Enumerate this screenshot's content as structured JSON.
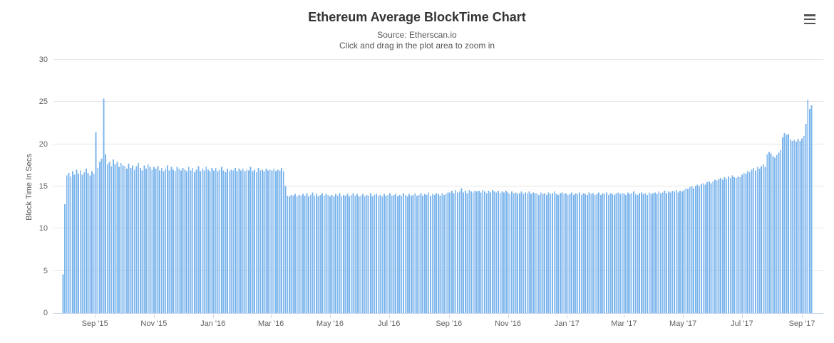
{
  "toolbar": {
    "menu_icon": "hamburger-menu-icon"
  },
  "chart_data": {
    "type": "bar",
    "title": "Ethereum Average BlockTime Chart",
    "subtitle": "Source: Etherscan.io",
    "zoom_hint": "Click and drag in the plot area to zoom in",
    "ylabel": "Block Time In Secs",
    "xlabel": "",
    "ylim": [
      0,
      30
    ],
    "yticks": [
      0,
      5,
      10,
      15,
      20,
      25,
      30
    ],
    "grid": true,
    "legend": false,
    "bar_color": "#7cb5ec",
    "axis_color": "#ccd6eb",
    "grid_color": "#e6e6e6",
    "xticks": [
      {
        "label": "Sep '15",
        "pos": 0.0438
      },
      {
        "label": "Nov '15",
        "pos": 0.1224
      },
      {
        "label": "Jan '16",
        "pos": 0.201
      },
      {
        "label": "Mar '16",
        "pos": 0.2784
      },
      {
        "label": "May '16",
        "pos": 0.357
      },
      {
        "label": "Jul '16",
        "pos": 0.4356
      },
      {
        "label": "Sep '16",
        "pos": 0.5155
      },
      {
        "label": "Nov '16",
        "pos": 0.5941
      },
      {
        "label": "Jan '17",
        "pos": 0.6727
      },
      {
        "label": "Mar '17",
        "pos": 0.7487
      },
      {
        "label": "May '17",
        "pos": 0.8273
      },
      {
        "label": "Jul '17",
        "pos": 0.9059
      },
      {
        "label": "Sep '17",
        "pos": 0.9858
      }
    ],
    "values": [
      4.6,
      12.9,
      16.3,
      16.6,
      16.2,
      16.8,
      16.4,
      17.0,
      16.5,
      16.9,
      16.4,
      16.7,
      17.1,
      16.6,
      16.3,
      16.8,
      16.5,
      21.4,
      17.2,
      17.9,
      18.3,
      25.4,
      18.8,
      17.6,
      17.9,
      17.4,
      18.2,
      17.6,
      17.9,
      17.3,
      17.8,
      17.5,
      17.4,
      17.1,
      17.7,
      17.2,
      17.5,
      17.0,
      17.4,
      17.8,
      17.2,
      16.9,
      17.5,
      17.1,
      17.6,
      17.3,
      17.0,
      17.3,
      17.1,
      17.4,
      16.9,
      17.2,
      16.8,
      17.1,
      17.5,
      16.9,
      17.3,
      17.0,
      16.8,
      17.3,
      17.1,
      16.9,
      17.2,
      17.0,
      16.8,
      17.3,
      16.9,
      17.2,
      16.7,
      17.0,
      17.4,
      16.8,
      17.1,
      16.9,
      17.3,
      17.0,
      16.8,
      17.2,
      16.9,
      17.2,
      16.8,
      17.0,
      17.3,
      16.9,
      16.7,
      17.1,
      16.8,
      17.0,
      16.9,
      17.2,
      16.8,
      17.1,
      16.9,
      17.1,
      16.8,
      17.0,
      16.9,
      17.3,
      16.8,
      17.0,
      16.7,
      17.2,
      16.9,
      17.0,
      16.8,
      17.1,
      16.9,
      17.0,
      16.9,
      17.1,
      16.8,
      17.0,
      16.9,
      17.2,
      16.8,
      15.1,
      13.9,
      13.8,
      14.0,
      13.9,
      14.1,
      13.8,
      14.0,
      13.9,
      14.1,
      13.9,
      14.2,
      13.8,
      14.0,
      14.3,
      13.9,
      14.1,
      13.8,
      14.0,
      14.2,
      13.9,
      14.1,
      14.0,
      13.8,
      14.0,
      13.8,
      14.1,
      13.9,
      14.2,
      13.8,
      14.0,
      13.9,
      14.1,
      13.8,
      14.0,
      14.2,
      13.9,
      14.1,
      13.8,
      13.9,
      14.1,
      13.8,
      14.0,
      13.9,
      14.2,
      13.8,
      14.0,
      14.1,
      13.9,
      14.0,
      13.8,
      14.1,
      13.9,
      14.0,
      14.2,
      13.9,
      14.0,
      14.1,
      13.8,
      14.0,
      13.9,
      14.2,
      14.0,
      13.8,
      14.1,
      13.9,
      14.0,
      14.2,
      13.9,
      14.0,
      14.2,
      13.9,
      14.1,
      14.0,
      14.3,
      13.9,
      14.1,
      14.0,
      14.2,
      14.1,
      13.9,
      14.2,
      14.0,
      14.1,
      14.3,
      14.3,
      14.5,
      14.2,
      14.6,
      14.3,
      14.4,
      14.8,
      14.3,
      14.5,
      14.2,
      14.6,
      14.4,
      14.3,
      14.5,
      14.4,
      14.5,
      14.3,
      14.6,
      14.4,
      14.2,
      14.5,
      14.3,
      14.6,
      14.4,
      14.3,
      14.5,
      14.2,
      14.4,
      14.3,
      14.5,
      14.3,
      14.1,
      14.4,
      14.2,
      14.3,
      14.1,
      14.2,
      14.4,
      14.1,
      14.3,
      14.2,
      14.4,
      14.1,
      14.3,
      14.2,
      14.2,
      14.0,
      14.3,
      14.1,
      14.2,
      14.0,
      14.3,
      14.1,
      14.2,
      14.4,
      14.1,
      14.0,
      14.2,
      14.3,
      14.1,
      14.2,
      14.0,
      14.1,
      14.3,
      14.0,
      14.2,
      14.1,
      14.3,
      14.0,
      14.2,
      14.1,
      14.0,
      14.3,
      14.1,
      14.2,
      14.0,
      14.1,
      14.3,
      14.0,
      14.2,
      14.1,
      14.3,
      14.0,
      14.2,
      14.1,
      14.0,
      14.2,
      14.3,
      14.1,
      14.2,
      14.2,
      14.0,
      14.3,
      14.1,
      14.2,
      14.4,
      14.1,
      14.0,
      14.2,
      14.3,
      14.1,
      14.2,
      14.0,
      14.3,
      14.1,
      14.2,
      14.3,
      14.1,
      14.4,
      14.2,
      14.3,
      14.5,
      14.2,
      14.4,
      14.3,
      14.5,
      14.4,
      14.6,
      14.3,
      14.5,
      14.4,
      14.6,
      14.8,
      14.7,
      14.9,
      15.0,
      14.8,
      15.1,
      15.2,
      15.0,
      15.3,
      15.4,
      15.2,
      15.5,
      15.6,
      15.4,
      15.6,
      15.8,
      15.7,
      15.9,
      16.0,
      15.8,
      16.1,
      15.9,
      16.2,
      16.0,
      16.3,
      16.1,
      16.0,
      16.2,
      16.1,
      16.4,
      16.6,
      16.5,
      16.8,
      16.7,
      17.0,
      17.2,
      16.9,
      17.3,
      17.1,
      17.4,
      17.6,
      17.3,
      18.8,
      19.1,
      18.9,
      18.6,
      18.4,
      18.7,
      19.0,
      19.3,
      20.8,
      21.3,
      21.1,
      21.2,
      20.6,
      20.4,
      20.5,
      20.3,
      20.6,
      20.4,
      20.7,
      21.0,
      22.4,
      25.3,
      24.2,
      24.6
    ]
  }
}
